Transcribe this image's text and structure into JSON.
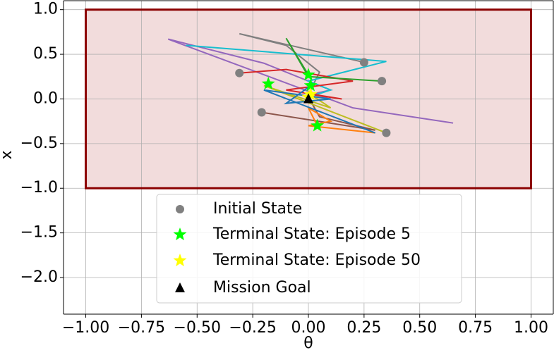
{
  "chart_data": {
    "type": "trajectory",
    "xlabel": "θ",
    "ylabel": "x",
    "xlim": [
      -1.1,
      1.1
    ],
    "ylim": [
      -2.41,
      1.1
    ],
    "xticks": [
      {
        "value": -1,
        "label": "−1.00"
      },
      {
        "value": -0.75,
        "label": "−0.75"
      },
      {
        "value": -0.5,
        "label": "−0.50"
      },
      {
        "value": -0.25,
        "label": "−0.25"
      },
      {
        "value": 0,
        "label": "0.00"
      },
      {
        "value": 0.25,
        "label": "0.25"
      },
      {
        "value": 0.5,
        "label": "0.50"
      },
      {
        "value": 0.75,
        "label": "0.75"
      },
      {
        "value": 1,
        "label": "1.00"
      }
    ],
    "yticks": [
      {
        "value": 1,
        "label": "1.0"
      },
      {
        "value": 0.5,
        "label": "0.5"
      },
      {
        "value": 0,
        "label": "0.0"
      },
      {
        "value": -0.5,
        "label": "−0.5"
      },
      {
        "value": -1,
        "label": "−1.0"
      },
      {
        "value": -1.5,
        "label": "−1.5"
      },
      {
        "value": -2,
        "label": "−2.0"
      }
    ],
    "grid": true,
    "region": {
      "x": [
        -1,
        1
      ],
      "y": [
        -1,
        1
      ],
      "color": "#8b0000",
      "fill": "#f2dcdc"
    },
    "trajectories": [
      {
        "color": "#7f7f7f",
        "x": [
          0.25,
          -0.31,
          -0.1,
          0.05,
          0.0
        ],
        "values": [
          0.41,
          0.73,
          0.6,
          0.3,
          0.05
        ]
      },
      {
        "color": "#9467bd",
        "x": [
          0.65,
          0.2,
          -0.63,
          -0.2,
          0.1,
          0.01
        ],
        "values": [
          -0.27,
          -0.1,
          0.67,
          0.4,
          0.1,
          0.05
        ]
      },
      {
        "color": "#17becf",
        "x": [
          -0.55,
          0.35,
          0.0,
          0.1,
          0.0
        ],
        "values": [
          0.6,
          0.42,
          0.2,
          0.1,
          0.02
        ]
      },
      {
        "color": "#d62728",
        "x": [
          -0.31,
          -0.1,
          0.2,
          -0.1,
          0.15,
          0.01
        ],
        "values": [
          0.29,
          0.33,
          0.2,
          0.1,
          0.0,
          0.05
        ]
      },
      {
        "color": "#8c564b",
        "x": [
          -0.21,
          0.3,
          0.05,
          0.0
        ],
        "values": [
          -0.15,
          -0.35,
          -0.2,
          0.02
        ]
      },
      {
        "color": "#bcbd22",
        "x": [
          0.35,
          -0.2,
          0.1,
          0.01
        ],
        "values": [
          -0.38,
          0.15,
          -0.1,
          0.05
        ]
      },
      {
        "color": "#ff7f0e",
        "x": [
          0.3,
          0.0,
          0.1,
          0.0,
          0.04
        ],
        "values": [
          -0.38,
          -0.3,
          -0.25,
          -0.1,
          -0.3
        ]
      },
      {
        "color": "#2ca02c",
        "x": [
          0.33,
          0.0,
          -0.1,
          0.0
        ],
        "values": [
          0.2,
          0.25,
          0.68,
          0.27
        ]
      },
      {
        "color": "#1f77b4",
        "x": [
          0.3,
          -0.2,
          0.1,
          -0.1,
          0.01
        ],
        "values": [
          -0.38,
          0.1,
          0.0,
          -0.05,
          0.15
        ]
      }
    ],
    "series": [
      {
        "name": "Initial State",
        "marker": "circle",
        "color": "#808080",
        "x": [
          0.25,
          0.33,
          -0.31,
          -0.21,
          0.35
        ],
        "values": [
          0.41,
          0.2,
          0.29,
          -0.15,
          -0.38
        ]
      },
      {
        "name": "Terminal State: Episode 5",
        "marker": "star",
        "color": "#00ff00",
        "x": [
          0.0,
          -0.18,
          0.04,
          0.01
        ],
        "values": [
          0.27,
          0.17,
          -0.3,
          0.15
        ]
      },
      {
        "name": "Terminal State: Episode 50",
        "marker": "star",
        "color": "#ffff00",
        "x": [
          0.01,
          0.0
        ],
        "values": [
          0.05,
          0.02
        ]
      },
      {
        "name": "Mission Goal",
        "marker": "triangle",
        "color": "#000000",
        "x": [
          0
        ],
        "values": [
          0
        ]
      }
    ]
  }
}
